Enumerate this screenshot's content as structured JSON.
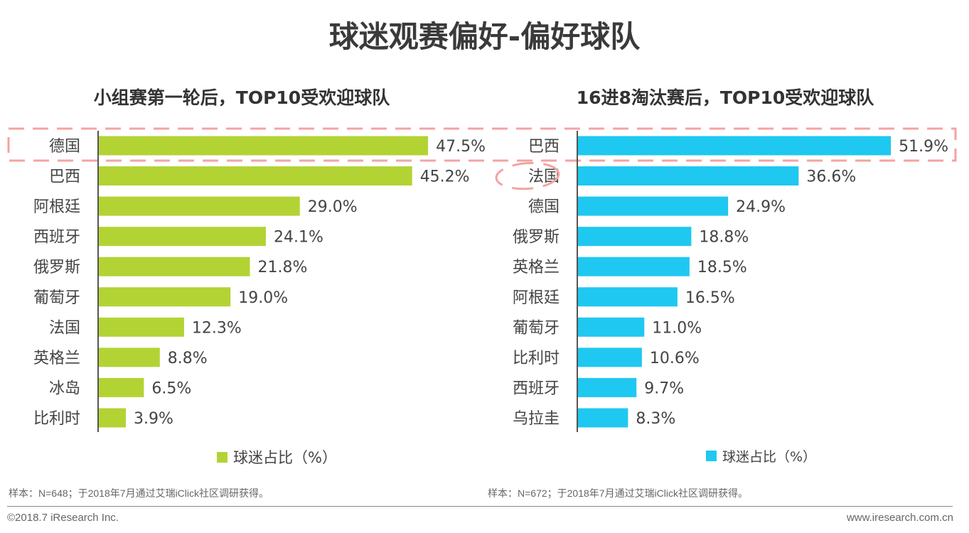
{
  "title": "球迷观赛偏好-偏好球队",
  "chart_data": [
    {
      "type": "bar",
      "orientation": "horizontal",
      "title": "小组赛第一轮后，TOP10受欢迎球队",
      "categories": [
        "德国",
        "巴西",
        "阿根廷",
        "西班牙",
        "俄罗斯",
        "葡萄牙",
        "法国",
        "英格兰",
        "冰岛",
        "比利时"
      ],
      "series": [
        {
          "name": "球迷占比（%）",
          "values": [
            47.5,
            45.2,
            29.0,
            24.1,
            21.8,
            19.0,
            12.3,
            8.8,
            6.5,
            3.9
          ],
          "color": "#b3d334"
        }
      ],
      "legend": "bottom",
      "note": "样本：N=648；于2018年7月通过艾瑞iClick社区调研获得。",
      "highlight": "德国"
    },
    {
      "type": "bar",
      "orientation": "horizontal",
      "title": "16进8淘汰赛后，TOP10受欢迎球队",
      "categories": [
        "巴西",
        "法国",
        "德国",
        "俄罗斯",
        "英格兰",
        "阿根廷",
        "葡萄牙",
        "比利时",
        "西班牙",
        "乌拉圭"
      ],
      "series": [
        {
          "name": "球迷占比（%）",
          "values": [
            51.9,
            36.6,
            24.9,
            18.8,
            18.5,
            16.5,
            11.0,
            10.6,
            9.7,
            8.3
          ],
          "color": "#1fc8f0"
        }
      ],
      "legend": "bottom",
      "note": "样本：N=672；于2018年7月通过艾瑞iClick社区调研获得。",
      "highlight": "巴西",
      "circled": "法国"
    }
  ],
  "footer": {
    "copyright": "©2018.7 iResearch Inc.",
    "website": "www.iresearch.com.cn"
  },
  "highlight_color": "#f4a3a3"
}
